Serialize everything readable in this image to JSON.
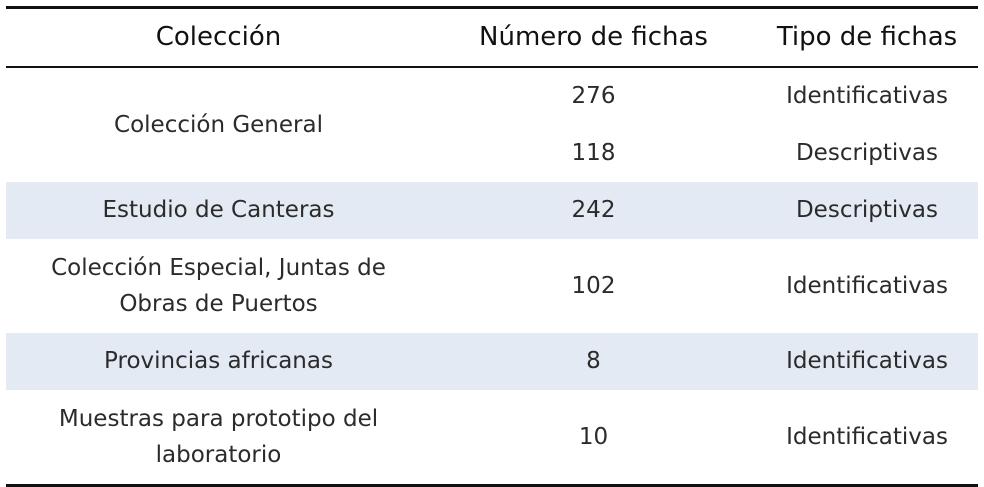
{
  "table": {
    "headers": {
      "coleccion": "Colección",
      "numero": "Número de fichas",
      "tipo": "Tipo de fichas"
    },
    "rows": [
      {
        "coleccion": "Colección General",
        "entries": [
          {
            "numero": "276",
            "tipo": "Identificativas"
          },
          {
            "numero": "118",
            "tipo": "Descriptivas"
          }
        ]
      },
      {
        "coleccion": "Estudio de Canteras",
        "entries": [
          {
            "numero": "242",
            "tipo": "Descriptivas"
          }
        ]
      },
      {
        "coleccion": "Colección Especial, Juntas de Obras de Puertos",
        "entries": [
          {
            "numero": "102",
            "tipo": "Identificativas"
          }
        ]
      },
      {
        "coleccion": "Provincias africanas",
        "entries": [
          {
            "numero": "8",
            "tipo": "Identificativas"
          }
        ]
      },
      {
        "coleccion": "Muestras para prototipo del laboratorio",
        "entries": [
          {
            "numero": "10",
            "tipo": "Identificativas"
          }
        ]
      }
    ],
    "colors": {
      "shaded_row": "#e4eaf3",
      "rule": "#111111",
      "text": "#2b2b2b"
    }
  }
}
